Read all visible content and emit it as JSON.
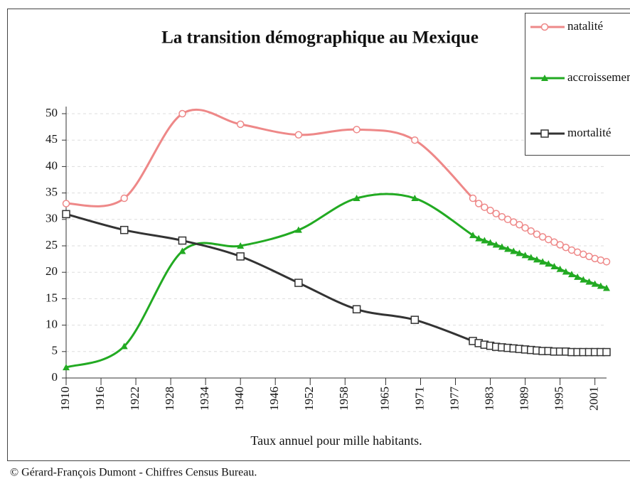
{
  "chart_data": {
    "type": "line",
    "title": "La transition démographique au Mexique",
    "x_label": "Taux annuel pour mille habitants.",
    "source": "© Gérard-François Dumont - Chiffres Census Bureau.",
    "x": [
      1910,
      1920,
      1930,
      1940,
      1950,
      1960,
      1970,
      1980,
      1981,
      1982,
      1983,
      1984,
      1985,
      1986,
      1987,
      1988,
      1989,
      1990,
      1991,
      1992,
      1993,
      1994,
      1995,
      1996,
      1997,
      1998,
      1999,
      2000,
      2001,
      2002,
      2003
    ],
    "series": [
      {
        "name": "natalité",
        "color": "#ee8888",
        "marker": "circle",
        "values": [
          33,
          34,
          50,
          48,
          46,
          47,
          45,
          34,
          33,
          32.3,
          31.7,
          31.1,
          30.5,
          30,
          29.5,
          29,
          28.4,
          27.8,
          27.2,
          26.7,
          26.2,
          25.7,
          25.2,
          24.7,
          24.2,
          23.8,
          23.4,
          23,
          22.6,
          22.3,
          22
        ]
      },
      {
        "name": "accroissement naturel",
        "color": "#22aa22",
        "marker": "triangle",
        "values": [
          2,
          6,
          24,
          25,
          28,
          34,
          34,
          27,
          26.4,
          26,
          25.6,
          25.2,
          24.8,
          24.4,
          24,
          23.6,
          23.2,
          22.8,
          22.4,
          22,
          21.6,
          21.1,
          20.6,
          20.1,
          19.6,
          19.1,
          18.6,
          18.2,
          17.8,
          17.4,
          17
        ]
      },
      {
        "name": "mortalité",
        "color": "#333333",
        "marker": "square",
        "values": [
          31,
          28,
          26,
          23,
          18,
          13,
          11,
          7,
          6.6,
          6.3,
          6.1,
          5.9,
          5.8,
          5.7,
          5.6,
          5.5,
          5.4,
          5.3,
          5.2,
          5.1,
          5.1,
          5,
          5,
          5,
          4.9,
          4.9,
          4.9,
          4.9,
          4.9,
          4.9,
          4.9
        ]
      }
    ],
    "xlim": [
      1910,
      2003
    ],
    "xticks": [
      1910,
      1916,
      1922,
      1928,
      1934,
      1940,
      1946,
      1952,
      1958,
      1965,
      1971,
      1977,
      1983,
      1989,
      1995,
      2001
    ],
    "ylim": [
      0,
      50
    ],
    "yticks": [
      0,
      5,
      10,
      15,
      20,
      25,
      30,
      35,
      40,
      45,
      50
    ],
    "grid": true,
    "legend": "top-right"
  }
}
